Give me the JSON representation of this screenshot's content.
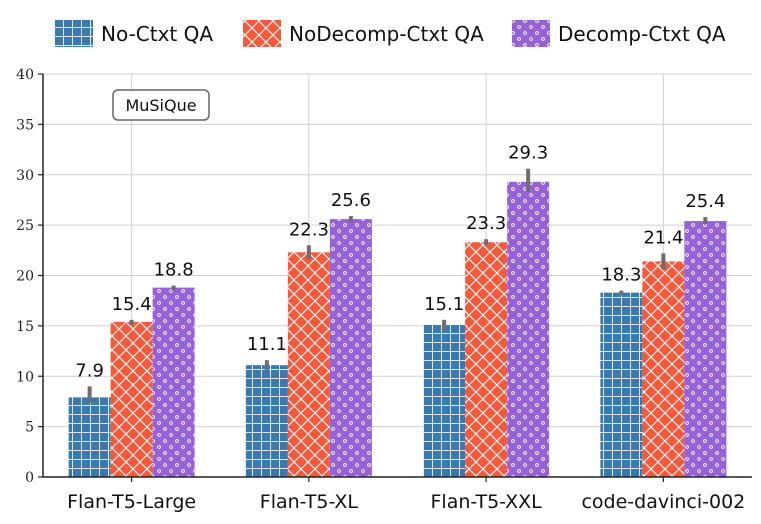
{
  "chart_data": {
    "type": "bar",
    "title": "",
    "annotation": "MuSiQue",
    "xlabel": "",
    "ylabel": "",
    "ylim": [
      0,
      40
    ],
    "yticks": [
      0,
      5,
      10,
      15,
      20,
      25,
      30,
      35,
      40
    ],
    "grid": true,
    "legend_position": "top",
    "categories": [
      "Flan-T5-Large",
      "Flan-T5-XL",
      "Flan-T5-XXL",
      "code-davinci-002"
    ],
    "series": [
      {
        "name": "No-Ctxt QA",
        "color": "#3a78b0",
        "pattern": "grid",
        "values": [
          7.9,
          11.1,
          15.1,
          18.3
        ],
        "labels": [
          "7.9",
          "11.1",
          "15.1",
          "18.3"
        ],
        "error_low": [
          7.3,
          10.6,
          14.5,
          18.0
        ],
        "error_high": [
          9.0,
          11.6,
          15.6,
          18.5
        ]
      },
      {
        "name": "NoDecomp-Ctxt QA",
        "color": "#f4593c",
        "pattern": "crosshatch",
        "values": [
          15.4,
          22.3,
          23.3,
          21.4
        ],
        "labels": [
          "15.4",
          "22.3",
          "23.3",
          "21.4"
        ],
        "error_low": [
          15.1,
          21.6,
          23.0,
          20.6
        ],
        "error_high": [
          15.6,
          23.0,
          23.6,
          22.2
        ]
      },
      {
        "name": "Decomp-Ctxt QA",
        "color": "#9562db",
        "pattern": "dots",
        "values": [
          18.8,
          25.6,
          29.3,
          25.4
        ],
        "labels": [
          "18.8",
          "25.6",
          "29.3",
          "25.4"
        ],
        "error_low": [
          18.5,
          25.3,
          28.3,
          25.1
        ],
        "error_high": [
          19.0,
          25.9,
          30.6,
          25.8
        ]
      }
    ]
  }
}
